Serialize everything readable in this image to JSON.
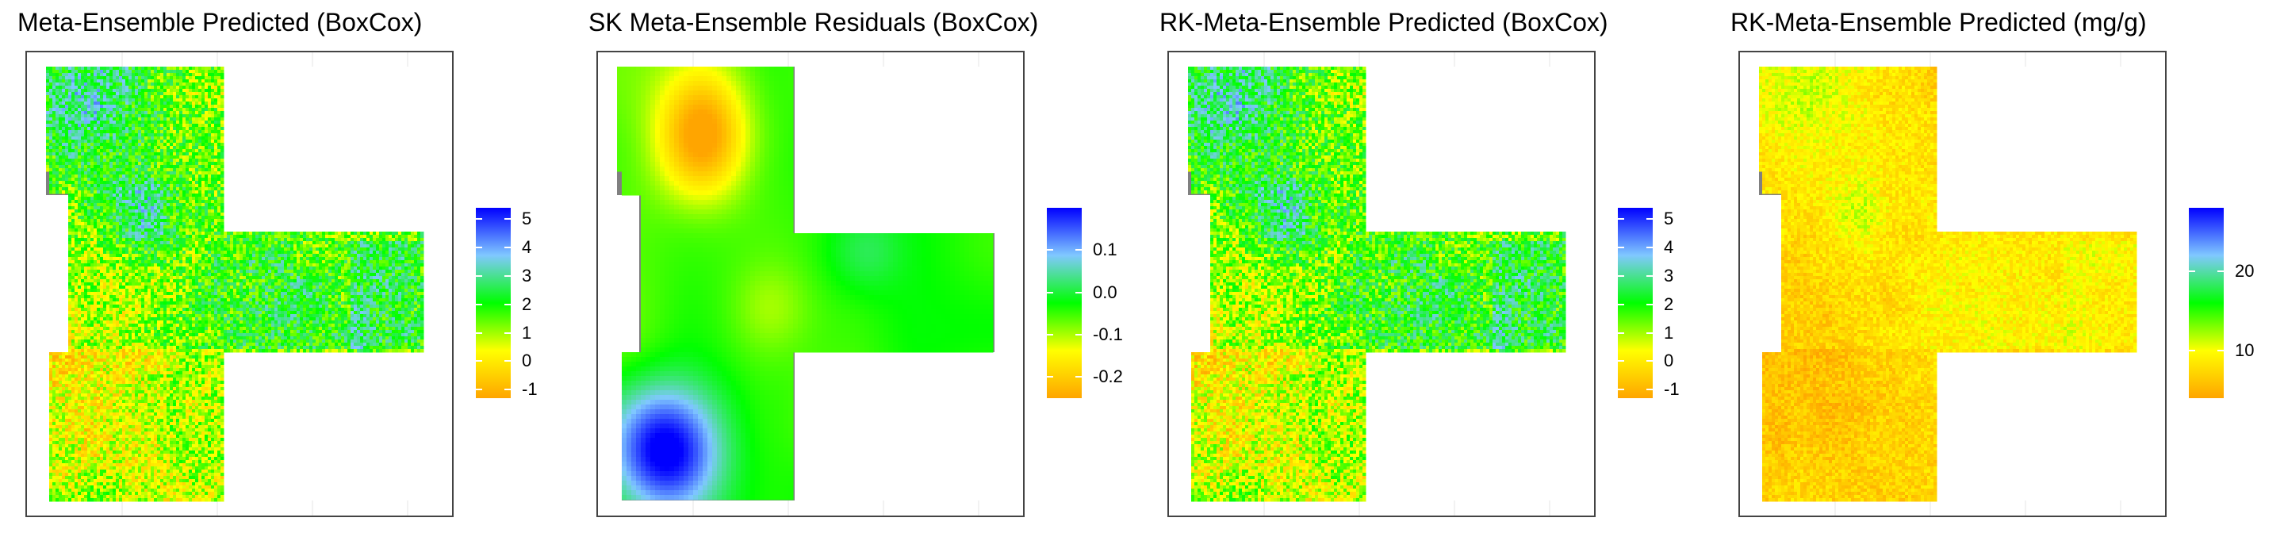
{
  "colors": {
    "no_data": "#808080",
    "ramp": [
      "#FFA500",
      "#FFFF00",
      "#00FF00",
      "#80C8FF",
      "#0000FF"
    ]
  },
  "chart_data": [
    {
      "type": "heatmap",
      "title": "Meta-Ensemble Predicted (BoxCox)",
      "style": "noisy",
      "range": [
        -1.3,
        5.4
      ],
      "legend_ticks": [
        5,
        4,
        3,
        2,
        1,
        0,
        -1
      ]
    },
    {
      "type": "heatmap",
      "title": "SK Meta-Ensemble Residuals (BoxCox)",
      "style": "smooth",
      "range": [
        -0.25,
        0.2
      ],
      "legend_ticks": [
        0.1,
        0.0,
        -0.1,
        -0.2
      ]
    },
    {
      "type": "heatmap",
      "title": "RK-Meta-Ensemble Predicted (BoxCox)",
      "style": "noisy",
      "range": [
        -1.3,
        5.4
      ],
      "legend_ticks": [
        5,
        4,
        3,
        2,
        1,
        0,
        -1
      ]
    },
    {
      "type": "heatmap",
      "title": "RK-Meta-Ensemble Predicted (mg/g)",
      "style": "noisy-low",
      "range": [
        4,
        28
      ],
      "legend_ticks": [
        20,
        10
      ]
    }
  ],
  "legend_labels": [
    [
      "5",
      "4",
      "3",
      "2",
      "1",
      "0",
      "-1"
    ],
    [
      "0.1",
      "0.0",
      "-0.1",
      "-0.2"
    ],
    [
      "5",
      "4",
      "3",
      "2",
      "1",
      "0",
      "-1"
    ],
    [
      "20",
      "10"
    ]
  ]
}
